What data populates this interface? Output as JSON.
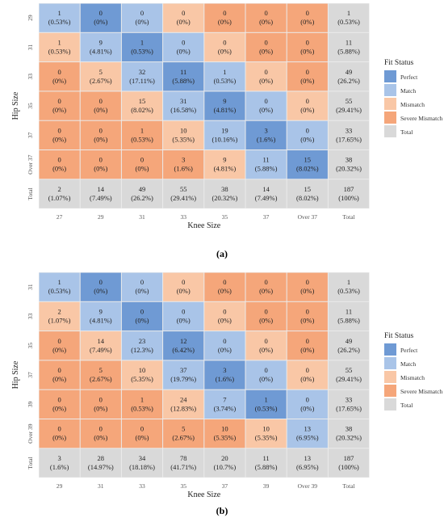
{
  "legend_colors": {
    "Perfect": "#6f9ad4",
    "Match": "#a9c4e8",
    "Mismatch": "#f9c7a6",
    "Severe Mismatch": "#f5a67a",
    "Total": "#d9d9d9"
  },
  "chart_data": [
    {
      "type": "heatmap",
      "panel_label": "(a)",
      "xlabel": "Knee Size",
      "ylabel": "Hip Size",
      "x_categories": [
        "27",
        "29",
        "31",
        "33",
        "35",
        "37",
        "Over 37",
        "Total"
      ],
      "y_categories": [
        "29",
        "31",
        "33",
        "35",
        "37",
        "Over 37",
        "Total"
      ],
      "legend_title": "Fit Status",
      "legend": [
        "Perfect",
        "Match",
        "Mismatch",
        "Severe Mismatch",
        "Total"
      ],
      "cells": [
        [
          [
            "1",
            "(0.53%)",
            "Match"
          ],
          [
            "0",
            "(0%)",
            "Perfect"
          ],
          [
            "0",
            "(0%)",
            "Match"
          ],
          [
            "0",
            "(0%)",
            "Mismatch"
          ],
          [
            "0",
            "(0%)",
            "Severe Mismatch"
          ],
          [
            "0",
            "(0%)",
            "Severe Mismatch"
          ],
          [
            "0",
            "(0%)",
            "Severe Mismatch"
          ],
          [
            "1",
            "(0.53%)",
            "Total"
          ]
        ],
        [
          [
            "1",
            "(0.53%)",
            "Mismatch"
          ],
          [
            "9",
            "(4.81%)",
            "Match"
          ],
          [
            "1",
            "(0.53%)",
            "Perfect"
          ],
          [
            "0",
            "(0%)",
            "Match"
          ],
          [
            "0",
            "(0%)",
            "Mismatch"
          ],
          [
            "0",
            "(0%)",
            "Severe Mismatch"
          ],
          [
            "0",
            "(0%)",
            "Severe Mismatch"
          ],
          [
            "11",
            "(5.88%)",
            "Total"
          ]
        ],
        [
          [
            "0",
            "(0%)",
            "Severe Mismatch"
          ],
          [
            "5",
            "(2.67%)",
            "Mismatch"
          ],
          [
            "32",
            "(17.11%)",
            "Match"
          ],
          [
            "11",
            "(5.88%)",
            "Perfect"
          ],
          [
            "1",
            "(0.53%)",
            "Match"
          ],
          [
            "0",
            "(0%)",
            "Mismatch"
          ],
          [
            "0",
            "(0%)",
            "Severe Mismatch"
          ],
          [
            "49",
            "(26.2%)",
            "Total"
          ]
        ],
        [
          [
            "0",
            "(0%)",
            "Severe Mismatch"
          ],
          [
            "0",
            "(0%)",
            "Severe Mismatch"
          ],
          [
            "15",
            "(8.02%)",
            "Mismatch"
          ],
          [
            "31",
            "(16.58%)",
            "Match"
          ],
          [
            "9",
            "(4.81%)",
            "Perfect"
          ],
          [
            "0",
            "(0%)",
            "Match"
          ],
          [
            "0",
            "(0%)",
            "Mismatch"
          ],
          [
            "55",
            "(29.41%)",
            "Total"
          ]
        ],
        [
          [
            "0",
            "(0%)",
            "Severe Mismatch"
          ],
          [
            "0",
            "(0%)",
            "Severe Mismatch"
          ],
          [
            "1",
            "(0.53%)",
            "Severe Mismatch"
          ],
          [
            "10",
            "(5.35%)",
            "Mismatch"
          ],
          [
            "19",
            "(10.16%)",
            "Match"
          ],
          [
            "3",
            "(1.6%)",
            "Perfect"
          ],
          [
            "0",
            "(0%)",
            "Match"
          ],
          [
            "33",
            "(17.65%)",
            "Total"
          ]
        ],
        [
          [
            "0",
            "(0%)",
            "Severe Mismatch"
          ],
          [
            "0",
            "(0%)",
            "Severe Mismatch"
          ],
          [
            "0",
            "(0%)",
            "Severe Mismatch"
          ],
          [
            "3",
            "(1.6%)",
            "Severe Mismatch"
          ],
          [
            "9",
            "(4.81%)",
            "Mismatch"
          ],
          [
            "11",
            "(5.88%)",
            "Match"
          ],
          [
            "15",
            "(8.02%)",
            "Perfect"
          ],
          [
            "38",
            "(20.32%)",
            "Total"
          ]
        ],
        [
          [
            "2",
            "(1.07%)",
            "Total"
          ],
          [
            "14",
            "(7.49%)",
            "Total"
          ],
          [
            "49",
            "(26.2%)",
            "Total"
          ],
          [
            "55",
            "(29.41%)",
            "Total"
          ],
          [
            "38",
            "(20.32%)",
            "Total"
          ],
          [
            "14",
            "(7.49%)",
            "Total"
          ],
          [
            "15",
            "(8.02%)",
            "Total"
          ],
          [
            "187",
            "(100%)",
            "Total"
          ]
        ]
      ]
    },
    {
      "type": "heatmap",
      "panel_label": "(b)",
      "xlabel": "Knee Size",
      "ylabel": "Hip Size",
      "x_categories": [
        "29",
        "31",
        "33",
        "35",
        "37",
        "39",
        "Over 39",
        "Total"
      ],
      "y_categories": [
        "31",
        "33",
        "35",
        "37",
        "39",
        "Over 39",
        "Total"
      ],
      "legend_title": "Fit Status",
      "legend": [
        "Perfect",
        "Match",
        "Mismatch",
        "Severe Mismatch",
        "Total"
      ],
      "cells": [
        [
          [
            "1",
            "(0.53%)",
            "Match"
          ],
          [
            "0",
            "(0%)",
            "Perfect"
          ],
          [
            "0",
            "(0%)",
            "Match"
          ],
          [
            "0",
            "(0%)",
            "Mismatch"
          ],
          [
            "0",
            "(0%)",
            "Severe Mismatch"
          ],
          [
            "0",
            "(0%)",
            "Severe Mismatch"
          ],
          [
            "0",
            "(0%)",
            "Severe Mismatch"
          ],
          [
            "1",
            "(0.53%)",
            "Total"
          ]
        ],
        [
          [
            "2",
            "(1.07%)",
            "Mismatch"
          ],
          [
            "9",
            "(4.81%)",
            "Match"
          ],
          [
            "0",
            "(0%)",
            "Perfect"
          ],
          [
            "0",
            "(0%)",
            "Match"
          ],
          [
            "0",
            "(0%)",
            "Mismatch"
          ],
          [
            "0",
            "(0%)",
            "Severe Mismatch"
          ],
          [
            "0",
            "(0%)",
            "Severe Mismatch"
          ],
          [
            "11",
            "(5.88%)",
            "Total"
          ]
        ],
        [
          [
            "0",
            "(0%)",
            "Severe Mismatch"
          ],
          [
            "14",
            "(7.49%)",
            "Mismatch"
          ],
          [
            "23",
            "(12.3%)",
            "Match"
          ],
          [
            "12",
            "(6.42%)",
            "Perfect"
          ],
          [
            "0",
            "(0%)",
            "Match"
          ],
          [
            "0",
            "(0%)",
            "Mismatch"
          ],
          [
            "0",
            "(0%)",
            "Severe Mismatch"
          ],
          [
            "49",
            "(26.2%)",
            "Total"
          ]
        ],
        [
          [
            "0",
            "(0%)",
            "Severe Mismatch"
          ],
          [
            "5",
            "(2.67%)",
            "Severe Mismatch"
          ],
          [
            "10",
            "(5.35%)",
            "Mismatch"
          ],
          [
            "37",
            "(19.79%)",
            "Match"
          ],
          [
            "3",
            "(1.6%)",
            "Perfect"
          ],
          [
            "0",
            "(0%)",
            "Match"
          ],
          [
            "0",
            "(0%)",
            "Mismatch"
          ],
          [
            "55",
            "(29.41%)",
            "Total"
          ]
        ],
        [
          [
            "0",
            "(0%)",
            "Severe Mismatch"
          ],
          [
            "0",
            "(0%)",
            "Severe Mismatch"
          ],
          [
            "1",
            "(0.53%)",
            "Severe Mismatch"
          ],
          [
            "24",
            "(12.83%)",
            "Mismatch"
          ],
          [
            "7",
            "(3.74%)",
            "Match"
          ],
          [
            "1",
            "(0.53%)",
            "Perfect"
          ],
          [
            "0",
            "(0%)",
            "Match"
          ],
          [
            "33",
            "(17.65%)",
            "Total"
          ]
        ],
        [
          [
            "0",
            "(0%)",
            "Severe Mismatch"
          ],
          [
            "0",
            "(0%)",
            "Severe Mismatch"
          ],
          [
            "0",
            "(0%)",
            "Severe Mismatch"
          ],
          [
            "5",
            "(2.67%)",
            "Severe Mismatch"
          ],
          [
            "10",
            "(5.35%)",
            "Severe Mismatch"
          ],
          [
            "10",
            "(5.35%)",
            "Mismatch"
          ],
          [
            "13",
            "(6.95%)",
            "Match"
          ],
          [
            "38",
            "(20.32%)",
            "Total"
          ]
        ],
        [
          [
            "3",
            "(1.6%)",
            "Total"
          ],
          [
            "28",
            "(14.97%)",
            "Total"
          ],
          [
            "34",
            "(18.18%)",
            "Total"
          ],
          [
            "78",
            "(41.71%)",
            "Total"
          ],
          [
            "20",
            "(10.7%)",
            "Total"
          ],
          [
            "11",
            "(5.88%)",
            "Total"
          ],
          [
            "13",
            "(6.95%)",
            "Total"
          ],
          [
            "187",
            "(100%)",
            "Total"
          ]
        ]
      ]
    }
  ]
}
